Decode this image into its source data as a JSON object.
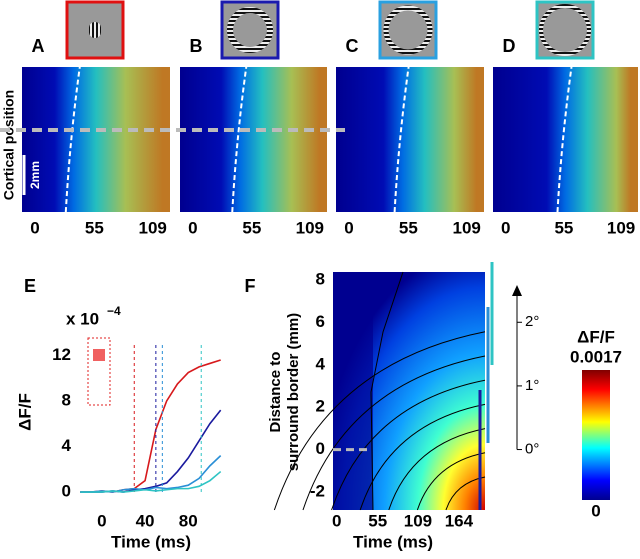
{
  "y_label": "Cortical position",
  "scale_bar": "2mm",
  "chart_data": [
    {
      "type": "heatmap",
      "label": "A",
      "xlim": [
        -12,
        125
      ],
      "xticks": [
        0,
        55,
        109
      ]
    },
    {
      "type": "heatmap",
      "label": "B",
      "xlim": [
        -12,
        125
      ],
      "xticks": [
        0,
        55,
        109
      ]
    },
    {
      "type": "heatmap",
      "label": "C",
      "xlim": [
        -12,
        125
      ],
      "xticks": [
        0,
        55,
        109
      ]
    },
    {
      "type": "heatmap",
      "label": "D",
      "xlim": [
        -12,
        125
      ],
      "xticks": [
        0,
        55,
        109
      ]
    },
    {
      "type": "line",
      "label": "E",
      "y_multiplier": "x 10",
      "y_multiplier_exponent": "−4",
      "y_label": "ΔF/F",
      "x_label": "Time (ms)",
      "xlim": [
        -23,
        114
      ],
      "ylim": [
        -0.7,
        13.8
      ],
      "xticks": [
        0,
        40,
        80
      ],
      "yticks": [
        0,
        4,
        8,
        12
      ],
      "x": [
        -20,
        -10,
        0,
        10,
        20,
        30,
        40,
        50,
        60,
        70,
        80,
        90,
        100,
        110
      ],
      "series": [
        {
          "color": "#d7191c",
          "onset": 30,
          "values": [
            0,
            0,
            0.1,
            0,
            0.2,
            0.3,
            1,
            5.5,
            8,
            9.5,
            10.5,
            11,
            11.3,
            11.6
          ]
        },
        {
          "color": "#1a1a9e",
          "onset": 50,
          "values": [
            0,
            0,
            0,
            0.1,
            0,
            0.2,
            0.3,
            0.5,
            0.8,
            1.8,
            3,
            4.5,
            6,
            7.2
          ]
        },
        {
          "color": "#2a8fd6",
          "onset": 56,
          "values": [
            0,
            0,
            0.1,
            0,
            0.2,
            0.3,
            0.2,
            0.4,
            0.3,
            0.4,
            0.6,
            1.2,
            2.3,
            3.2
          ]
        },
        {
          "color": "#2ec4c4",
          "onset": 92,
          "values": [
            0,
            0,
            0,
            0.1,
            0,
            0.1,
            0.2,
            0.1,
            0.2,
            0.3,
            0.3,
            0.5,
            1,
            1.8
          ]
        }
      ]
    },
    {
      "type": "heatmap",
      "label": "F",
      "x_label": "Time (ms)",
      "y_label": [
        "Distance to",
        "surround border (mm)"
      ],
      "xlim": [
        -5,
        199
      ],
      "xticks": [
        0,
        55,
        109,
        164
      ],
      "ylim": [
        -2.85,
        8.38
      ],
      "yticks": [
        -2,
        0,
        2,
        4,
        6,
        8
      ],
      "y2lim": [
        -0.95,
        2.79
      ],
      "y2ticks": [
        {
          "value": 0,
          "label": "0°"
        },
        {
          "value": 1,
          "label": "1°"
        },
        {
          "value": 2,
          "label": "2°"
        }
      ],
      "colorbar": {
        "title": "ΔF/F",
        "ticks": [
          0.0017,
          0
        ]
      }
    }
  ]
}
